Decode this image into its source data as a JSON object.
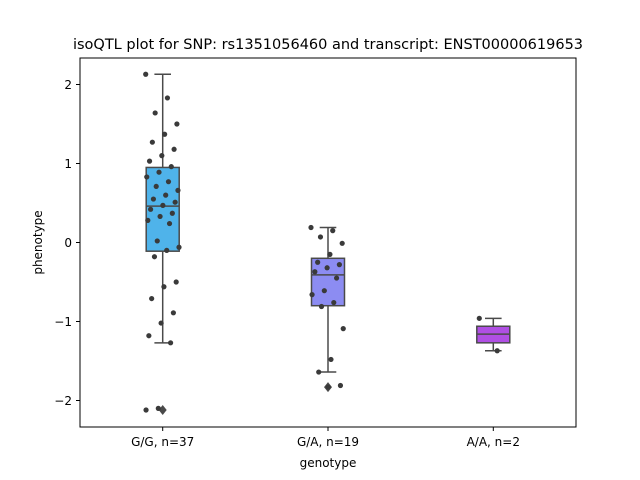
{
  "chart_data": {
    "type": "box",
    "title": "isoQTL plot for SNP: rs1351056460 and transcript: ENST00000619653",
    "xlabel": "genotype",
    "ylabel": "phenotype",
    "ylim": [
      -2.33,
      2.33
    ],
    "yticks": [
      -2,
      -1,
      0,
      1,
      2
    ],
    "grid": false,
    "categories": [
      "G/G, n=37",
      "G/A, n=19",
      "A/A, n=2"
    ],
    "box_colors": [
      "#4fb3ea",
      "#8c8cf2",
      "#b04fe4"
    ],
    "boxes": [
      {
        "category": "G/G, n=37",
        "whisker_low": -1.27,
        "q1": -0.11,
        "median": 0.46,
        "q3": 0.95,
        "whisker_high": 2.13,
        "outliers": [
          -2.12
        ]
      },
      {
        "category": "G/A, n=19",
        "whisker_low": -1.64,
        "q1": -0.8,
        "median": -0.41,
        "q3": -0.2,
        "whisker_high": 0.19,
        "outliers": [
          -1.83
        ]
      },
      {
        "category": "A/A, n=2",
        "whisker_low": -1.37,
        "q1": -1.27,
        "median": -1.16,
        "q3": -1.06,
        "whisker_high": -0.96,
        "outliers": []
      }
    ],
    "points": [
      [
        2.13,
        1.83,
        1.64,
        1.5,
        1.37,
        1.27,
        1.18,
        1.1,
        1.03,
        0.96,
        0.89,
        0.83,
        0.77,
        0.71,
        0.66,
        0.6,
        0.55,
        0.51,
        0.47,
        0.42,
        0.37,
        0.33,
        0.28,
        0.24,
        0.02,
        -0.06,
        -0.1,
        -0.18,
        -0.5,
        -0.56,
        -0.71,
        -0.89,
        -1.02,
        -1.18,
        -1.27,
        -2.1,
        -2.12
      ],
      [
        0.19,
        0.15,
        0.07,
        -0.01,
        -0.15,
        -0.25,
        -0.28,
        -0.32,
        -0.37,
        -0.45,
        -0.61,
        -0.66,
        -0.76,
        -0.81,
        -1.09,
        -1.48,
        -1.64,
        -1.81,
        -1.83
      ],
      [
        -0.96,
        -1.37
      ]
    ]
  }
}
